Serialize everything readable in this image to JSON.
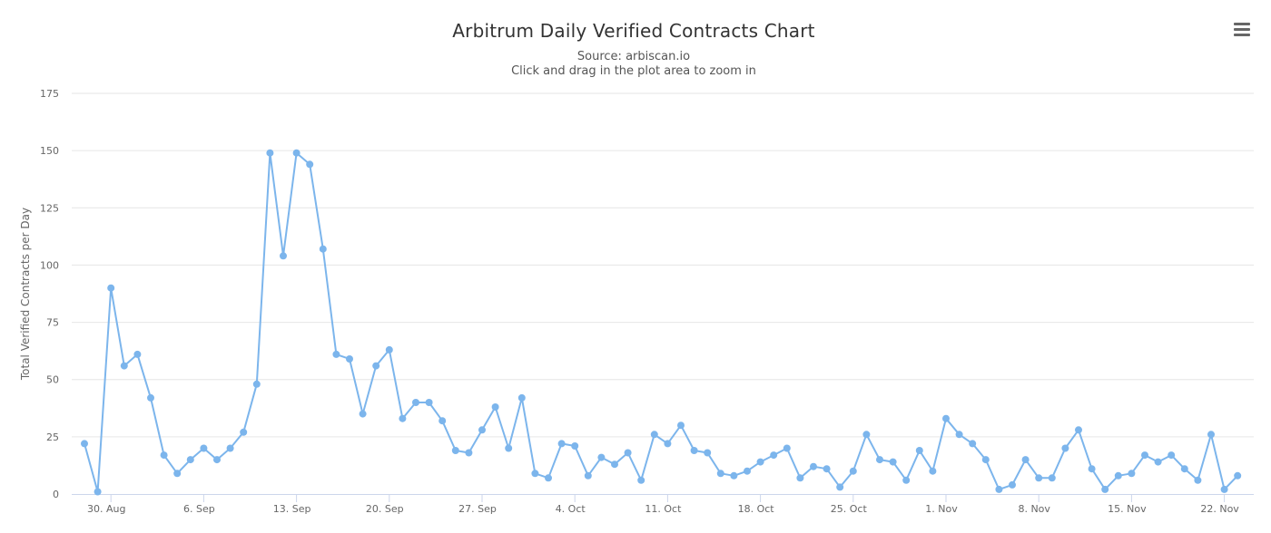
{
  "title": "Arbitrum Daily Verified Contracts Chart",
  "subtitle_source": "Source: arbiscan.io",
  "subtitle_hint": "Click and drag in the plot area to zoom in",
  "menu_icon": "hamburger-menu-icon",
  "chart_data": {
    "type": "line",
    "title": "Arbitrum Daily Verified Contracts Chart",
    "xlabel": "",
    "ylabel": "Total Verified Contracts per Day",
    "ylim": [
      0,
      175
    ],
    "yticks": [
      0,
      25,
      50,
      75,
      100,
      125,
      150,
      175
    ],
    "x_start": "2021-08-28",
    "x_end": "2021-11-22",
    "xticks": [
      {
        "label": "30. Aug",
        "date": "2021-08-30"
      },
      {
        "label": "6. Sep",
        "date": "2021-09-06"
      },
      {
        "label": "13. Sep",
        "date": "2021-09-13"
      },
      {
        "label": "20. Sep",
        "date": "2021-09-20"
      },
      {
        "label": "27. Sep",
        "date": "2021-09-27"
      },
      {
        "label": "4. Oct",
        "date": "2021-10-04"
      },
      {
        "label": "11. Oct",
        "date": "2021-10-11"
      },
      {
        "label": "18. Oct",
        "date": "2021-10-18"
      },
      {
        "label": "25. Oct",
        "date": "2021-10-25"
      },
      {
        "label": "1. Nov",
        "date": "2021-11-01"
      },
      {
        "label": "8. Nov",
        "date": "2021-11-08"
      },
      {
        "label": "15. Nov",
        "date": "2021-11-15"
      },
      {
        "label": "22. Nov",
        "date": "2021-11-22"
      }
    ],
    "grid": "horizontal",
    "legend": "none",
    "color": "#7cb5ec",
    "series": [
      {
        "values": [
          22,
          1,
          90,
          56,
          61,
          42,
          17,
          9,
          15,
          20,
          15,
          20,
          27,
          48,
          149,
          104,
          149,
          144,
          107,
          61,
          59,
          35,
          56,
          63,
          33,
          40,
          40,
          32,
          19,
          18,
          28,
          38,
          20,
          42,
          9,
          7,
          22,
          21,
          8,
          16,
          13,
          18,
          6,
          26,
          22,
          30,
          19,
          18,
          9,
          8,
          10,
          14,
          17,
          20,
          7,
          12,
          11,
          3,
          10,
          26,
          15,
          14,
          6,
          19,
          10,
          33,
          26,
          22,
          15,
          2,
          4,
          15,
          7,
          7,
          20,
          28,
          11,
          2,
          8,
          9,
          17,
          14,
          17,
          11,
          6,
          26,
          2,
          8
        ]
      }
    ]
  }
}
